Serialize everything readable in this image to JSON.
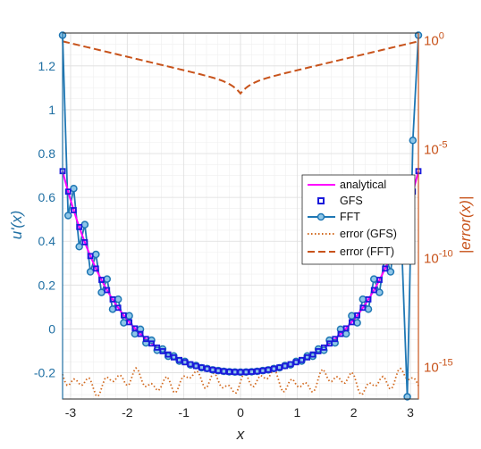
{
  "chart_data": {
    "type": "line",
    "xlabel": "x",
    "ylabel_left": "u'(x)",
    "ylabel_right": "|error(x)|",
    "xlim": [
      -3.1416,
      3.1416
    ],
    "ylim_left": [
      -0.32,
      1.35
    ],
    "ylim_right_log10": [
      -16.5,
      0.3
    ],
    "grid": "on (major and minor)",
    "legend_position": "right",
    "x_ticks": [
      "-3",
      "-2",
      "-1",
      "0",
      "1",
      "2",
      "3"
    ],
    "y_left_ticks": [
      "-0.2",
      "0",
      "0.2",
      "0.4",
      "0.6",
      "0.8",
      "1",
      "1.2"
    ],
    "y_right_ticks": [
      {
        "base": "10",
        "exp": "0"
      },
      {
        "base": "10",
        "exp": "-5"
      },
      {
        "base": "10",
        "exp": "-10"
      },
      {
        "base": "10",
        "exp": "-15"
      }
    ],
    "colors": {
      "analytical": "#ff00ff",
      "gfs": "#1a1adb",
      "fft": "#1f77b4",
      "error_gfs": "#d2691e",
      "error_fft": "#c8531b",
      "left_axis": "#1f6fa3",
      "right_axis": "#c8531b"
    },
    "series": [
      {
        "name": "analytical",
        "style": "magenta solid line",
        "function": "u'(x) = cosh(x)/sinh(pi) - 0.284 approximate"
      },
      {
        "name": "GFS",
        "style": "blue square markers",
        "sampled": true
      },
      {
        "name": "FFT",
        "style": "blue line with circle markers, oscillating",
        "endpoint_left": 1.34,
        "endpoint_right": 1.34,
        "near_right_end": [
          0.86,
          -0.31
        ]
      },
      {
        "name": "error (GFS)",
        "style": "orange dotted",
        "log10_range": [
          -16.2,
          -15.1
        ]
      },
      {
        "name": "error (FFT)",
        "style": "orange dashed",
        "log10_at_ends": -0.1,
        "log10_min_at_zero": -2.8
      }
    ]
  }
}
